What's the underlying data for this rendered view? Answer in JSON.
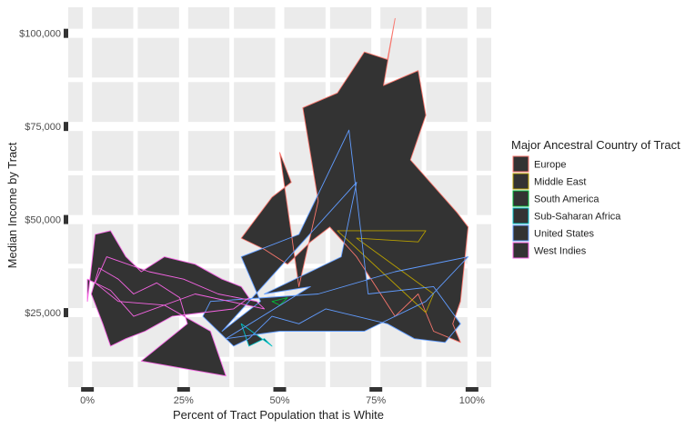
{
  "chart_data": {
    "type": "area",
    "title": "",
    "xlabel": "Percent of Tract Population that is White",
    "ylabel": "Median Income by Tract",
    "xlim": [
      -0.05,
      1.05
    ],
    "ylim": [
      5000,
      107000
    ],
    "x_ticks": [
      0,
      0.25,
      0.5,
      0.75,
      1.0
    ],
    "x_tick_labels": [
      "0%",
      "25%",
      "50%",
      "75%",
      "100%"
    ],
    "y_ticks": [
      25000,
      50000,
      75000,
      100000
    ],
    "y_tick_labels": [
      "$25,000",
      "$50,000",
      "$75,000",
      "$100,000"
    ],
    "grid": true,
    "legend": {
      "title": "Major Ancestral Country of Tract",
      "placement": "right"
    },
    "series": [
      {
        "name": "Europe",
        "color": "#F8766D",
        "points": [
          [
            0.55,
            32000
          ],
          [
            0.6,
            55000
          ],
          [
            0.56,
            80000
          ],
          [
            0.65,
            84000
          ],
          [
            0.72,
            95000
          ],
          [
            0.78,
            93000
          ],
          [
            0.8,
            104000
          ],
          [
            0.77,
            86000
          ],
          [
            0.86,
            90000
          ],
          [
            0.88,
            78000
          ],
          [
            0.84,
            66000
          ],
          [
            0.96,
            52000
          ],
          [
            0.99,
            48000
          ],
          [
            0.98,
            38000
          ],
          [
            0.97,
            28000
          ],
          [
            0.95,
            22000
          ],
          [
            0.97,
            17000
          ],
          [
            0.9,
            20000
          ],
          [
            0.86,
            30000
          ],
          [
            0.8,
            24000
          ],
          [
            0.75,
            32000
          ],
          [
            0.7,
            40000
          ],
          [
            0.63,
            48000
          ],
          [
            0.58,
            44000
          ],
          [
            0.52,
            38000
          ],
          [
            0.46,
            42000
          ],
          [
            0.4,
            45000
          ],
          [
            0.48,
            56000
          ],
          [
            0.53,
            60000
          ],
          [
            0.5,
            68000
          ]
        ]
      },
      {
        "name": "Middle East",
        "color": "#B79F00",
        "points": [
          [
            0.65,
            47000
          ],
          [
            0.88,
            47000
          ],
          [
            0.86,
            44000
          ],
          [
            0.7,
            45000
          ],
          [
            0.9,
            30000
          ],
          [
            0.88,
            25000
          ]
        ]
      },
      {
        "name": "South America",
        "color": "#00BA38",
        "points": [
          [
            0.48,
            28000
          ],
          [
            0.5,
            27000
          ],
          [
            0.52,
            29000
          ]
        ]
      },
      {
        "name": "Sub-Saharan Africa",
        "color": "#00BFC4",
        "points": [
          [
            0.4,
            22000
          ],
          [
            0.42,
            16000
          ],
          [
            0.46,
            18000
          ],
          [
            0.48,
            16000
          ]
        ]
      },
      {
        "name": "United States",
        "color": "#619CFF",
        "points": [
          [
            0.35,
            20000
          ],
          [
            0.45,
            28000
          ],
          [
            0.4,
            40000
          ],
          [
            0.55,
            46000
          ],
          [
            0.68,
            74000
          ],
          [
            0.73,
            30000
          ],
          [
            0.9,
            32000
          ],
          [
            0.97,
            22000
          ],
          [
            0.93,
            17000
          ],
          [
            0.85,
            18000
          ],
          [
            0.78,
            22000
          ],
          [
            0.7,
            24000
          ],
          [
            0.62,
            26000
          ],
          [
            0.55,
            22000
          ],
          [
            0.48,
            24000
          ],
          [
            0.42,
            18000
          ],
          [
            0.38,
            16000
          ],
          [
            0.3,
            24000
          ],
          [
            0.32,
            28000
          ],
          [
            0.6,
            30000
          ],
          [
            0.8,
            36000
          ],
          [
            0.99,
            40000
          ],
          [
            0.88,
            28000
          ],
          [
            0.72,
            20000
          ],
          [
            0.5,
            20000
          ],
          [
            0.36,
            18000
          ],
          [
            0.58,
            32000
          ],
          [
            0.46,
            30000
          ],
          [
            0.66,
            40000
          ],
          [
            0.7,
            60000
          ]
        ]
      },
      {
        "name": "West Indies",
        "color": "#F564E3",
        "points": [
          [
            0.0,
            28000
          ],
          [
            0.02,
            46000
          ],
          [
            0.06,
            47000
          ],
          [
            0.1,
            40000
          ],
          [
            0.14,
            36000
          ],
          [
            0.2,
            40000
          ],
          [
            0.28,
            38000
          ],
          [
            0.35,
            34000
          ],
          [
            0.4,
            32000
          ],
          [
            0.42,
            29000
          ],
          [
            0.38,
            26000
          ],
          [
            0.3,
            25000
          ],
          [
            0.22,
            24000
          ],
          [
            0.15,
            20000
          ],
          [
            0.1,
            18000
          ],
          [
            0.06,
            16000
          ],
          [
            0.04,
            22000
          ],
          [
            0.01,
            30000
          ],
          [
            0.03,
            37000
          ],
          [
            0.08,
            34000
          ],
          [
            0.12,
            30000
          ],
          [
            0.18,
            33000
          ],
          [
            0.24,
            29000
          ],
          [
            0.26,
            22000
          ],
          [
            0.14,
            12000
          ],
          [
            0.36,
            8000
          ],
          [
            0.32,
            20000
          ],
          [
            0.2,
            27000
          ],
          [
            0.08,
            28000
          ],
          [
            0.02,
            33000
          ],
          [
            0.05,
            40000
          ],
          [
            0.16,
            36000
          ],
          [
            0.25,
            34000
          ],
          [
            0.34,
            30000
          ],
          [
            0.44,
            28000
          ],
          [
            0.46,
            26000
          ],
          [
            0.28,
            30000
          ],
          [
            0.12,
            24000
          ],
          [
            0.06,
            31000
          ],
          [
            0.0,
            34000
          ]
        ]
      }
    ]
  }
}
